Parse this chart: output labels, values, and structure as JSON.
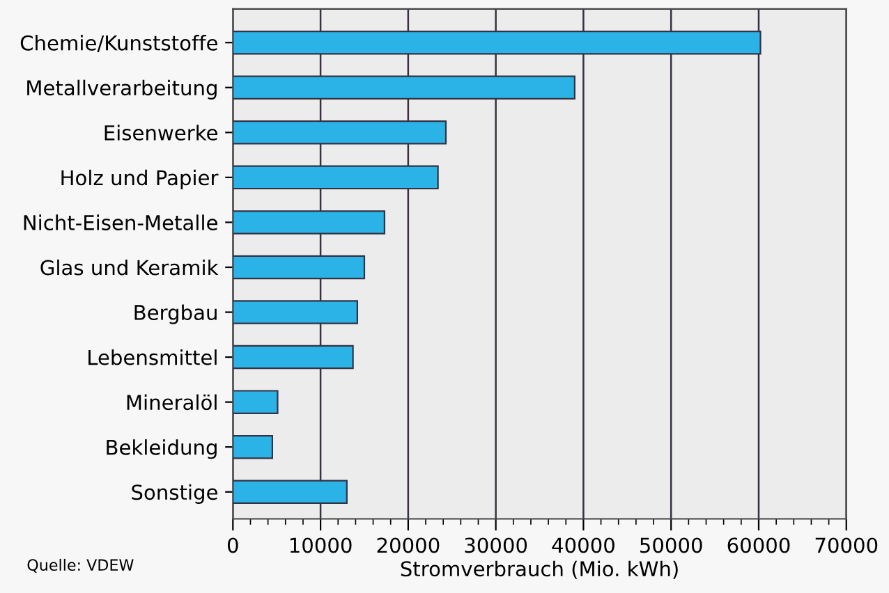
{
  "chart_data": {
    "type": "bar",
    "orientation": "horizontal",
    "categories": [
      "Chemie/Kunststoffe",
      "Metallverarbeitung",
      "Eisenwerke",
      "Holz und Papier",
      "Nicht-Eisen-Metalle",
      "Glas und Keramik",
      "Bergbau",
      "Lebensmittel",
      "Mineralöl",
      "Bekleidung",
      "Sonstige"
    ],
    "values": [
      60200,
      39000,
      24300,
      23400,
      17300,
      15000,
      14200,
      13700,
      5100,
      4500,
      13000
    ],
    "color": "#2bb3e8",
    "xlabel": "Stromverbrauch (Mio. kWh)",
    "xlim": [
      0,
      70000
    ],
    "xticks": [
      0,
      {
        "value": 2000,
        "label": null
      },
      {
        "value": 4000,
        "label": null
      },
      {
        "value": 6000,
        "label": null
      },
      {
        "value": 8000,
        "label": null
      },
      10000,
      {
        "value": 12000,
        "label": null
      },
      {
        "value": 14000,
        "label": null
      },
      {
        "value": 16000,
        "label": null
      },
      {
        "value": 18000,
        "label": null
      },
      20000,
      {
        "value": 22000,
        "label": null
      },
      {
        "value": 24000,
        "label": null
      },
      {
        "value": 26000,
        "label": null
      },
      {
        "value": 28000,
        "label": null
      },
      30000,
      {
        "value": 32000,
        "label": null
      },
      {
        "value": 34000,
        "label": null
      },
      {
        "value": 36000,
        "label": null
      },
      {
        "value": 38000,
        "label": null
      },
      40000,
      {
        "value": 42000,
        "label": null
      },
      {
        "value": 44000,
        "label": null
      },
      {
        "value": 46000,
        "label": null
      },
      {
        "value": 48000,
        "label": null
      },
      50000,
      {
        "value": 52000,
        "label": null
      },
      {
        "value": 54000,
        "label": null
      },
      {
        "value": 56000,
        "label": null
      },
      {
        "value": 58000,
        "label": null
      },
      60000,
      {
        "value": 62000,
        "label": null
      },
      {
        "value": 64000,
        "label": null
      },
      {
        "value": 66000,
        "label": null
      },
      {
        "value": 68000,
        "label": null
      },
      70000
    ],
    "grid": "x",
    "annotations": [
      "Quelle: VDEW"
    ]
  }
}
